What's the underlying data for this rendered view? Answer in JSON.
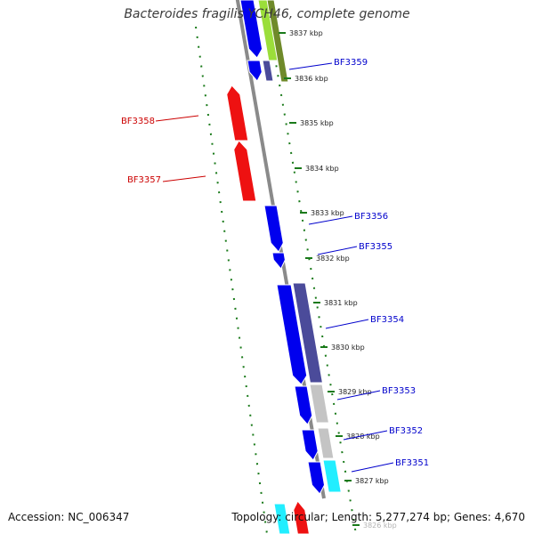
{
  "header": {
    "title": "Bacteroides fragilis YCH46, complete genome"
  },
  "footer": {
    "accession_label": "Accession:",
    "accession": "NC_006347",
    "topology_label": "Topology:",
    "topology": "circular",
    "length_label": "Length:",
    "length": "5,277,274 bp",
    "genes_label": "Genes:",
    "genes": "4,670"
  },
  "colors": {
    "backbone": "#8a8a8a",
    "tick": "#1a7a1a",
    "forward_label": "#0000cc",
    "reverse_label": "#cc0000"
  },
  "map": {
    "ticks": [
      {
        "position_kbp": 3837,
        "label": "3837 kbp"
      },
      {
        "position_kbp": 3836,
        "label": "3836 kbp"
      },
      {
        "position_kbp": 3835,
        "label": "3835 kbp"
      },
      {
        "position_kbp": 3834,
        "label": "3834 kbp"
      },
      {
        "position_kbp": 3833,
        "label": "3833 kbp"
      },
      {
        "position_kbp": 3832,
        "label": "3832 kbp"
      },
      {
        "position_kbp": 3831,
        "label": "3831 kbp"
      },
      {
        "position_kbp": 3830,
        "label": "3830 kbp"
      },
      {
        "position_kbp": 3829,
        "label": "3829 kbp"
      },
      {
        "position_kbp": 3828,
        "label": "3828 kbp"
      },
      {
        "position_kbp": 3827,
        "label": "3827 kbp"
      },
      {
        "position_kbp": 3826,
        "label": "3826 kbp"
      }
    ],
    "gene_labels": [
      {
        "name": "BF3359",
        "strand": "forward"
      },
      {
        "name": "BF3358",
        "strand": "reverse"
      },
      {
        "name": "BF3357",
        "strand": "reverse"
      },
      {
        "name": "BF3356",
        "strand": "forward"
      },
      {
        "name": "BF3355",
        "strand": "forward"
      },
      {
        "name": "BF3354",
        "strand": "forward"
      },
      {
        "name": "BF3353",
        "strand": "forward"
      },
      {
        "name": "BF3352",
        "strand": "forward"
      },
      {
        "name": "BF3351",
        "strand": "forward"
      }
    ]
  }
}
